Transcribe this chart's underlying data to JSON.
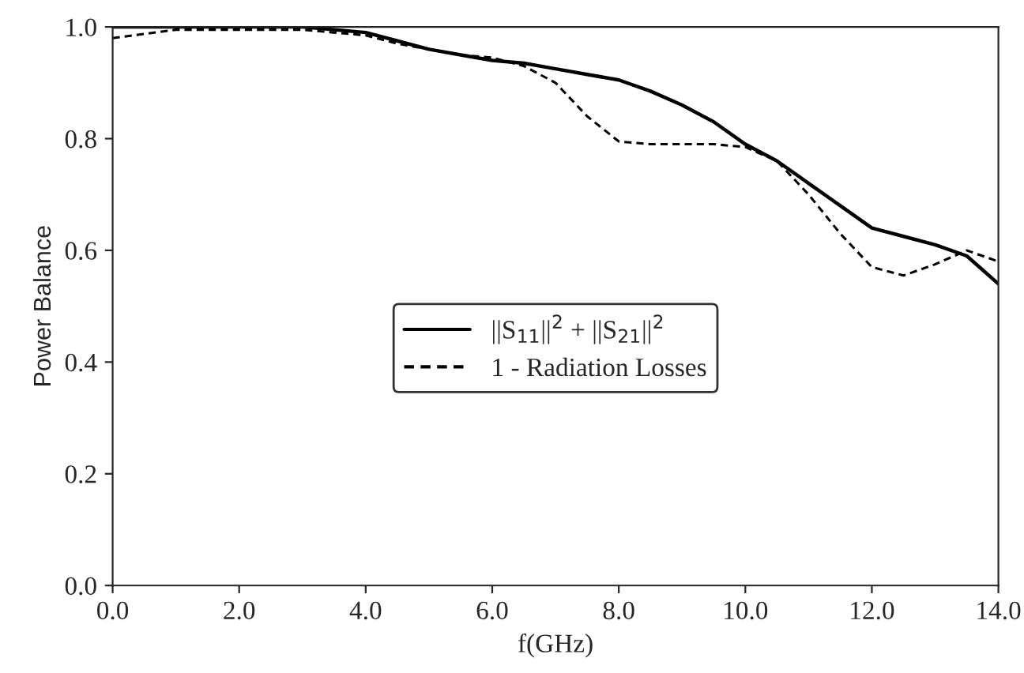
{
  "chart_data": {
    "type": "line",
    "xlabel": "f(GHz)",
    "ylabel": "Power Balance",
    "xlim": [
      0,
      14
    ],
    "ylim": [
      0,
      1
    ],
    "xticks": [
      {
        "value": 0,
        "label": "0.0"
      },
      {
        "value": 2,
        "label": "2.0"
      },
      {
        "value": 4,
        "label": "4.0"
      },
      {
        "value": 6,
        "label": "6.0"
      },
      {
        "value": 8,
        "label": "8.0"
      },
      {
        "value": 10,
        "label": "10.0"
      },
      {
        "value": 12,
        "label": "12.0"
      },
      {
        "value": 14,
        "label": "14.0"
      }
    ],
    "yticks": [
      {
        "value": 0,
        "label": "0.0"
      },
      {
        "value": 0.2,
        "label": "0.2"
      },
      {
        "value": 0.4,
        "label": "0.4"
      },
      {
        "value": 0.6,
        "label": "0.6"
      },
      {
        "value": 0.8,
        "label": "0.8"
      },
      {
        "value": 1,
        "label": "1.0"
      }
    ],
    "x": [
      0,
      1,
      2,
      3,
      4,
      4.5,
      5,
      5.5,
      6,
      6.5,
      7,
      7.5,
      8,
      8.5,
      9,
      9.5,
      10,
      10.5,
      11,
      11.5,
      12,
      12.5,
      13,
      13.5,
      14
    ],
    "series": [
      {
        "name": "||S$_{11}$||$^{2}$ + ||S$_{21}$||$^{2}$",
        "color": "#000000",
        "line_style": "solid",
        "values": [
          1.0,
          1.0,
          1.0,
          1.0,
          0.99,
          0.975,
          0.96,
          0.95,
          0.94,
          0.935,
          0.925,
          0.915,
          0.905,
          0.885,
          0.86,
          0.83,
          0.79,
          0.76,
          0.72,
          0.68,
          0.64,
          0.625,
          0.61,
          0.59,
          0.54
        ]
      },
      {
        "name": "1 - Radiation Losses",
        "color": "#000000",
        "line_style": "dashed",
        "values": [
          0.98,
          0.995,
          0.995,
          0.995,
          0.985,
          0.97,
          0.96,
          0.95,
          0.945,
          0.93,
          0.9,
          0.84,
          0.795,
          0.79,
          0.79,
          0.79,
          0.785,
          0.76,
          0.7,
          0.63,
          0.57,
          0.555,
          0.575,
          0.6,
          0.58
        ]
      }
    ],
    "legend": "center",
    "grid": false
  }
}
